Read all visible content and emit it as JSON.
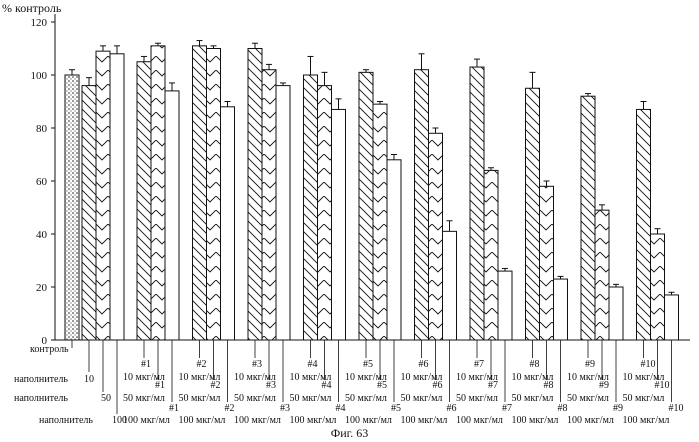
{
  "chart_data": {
    "type": "bar",
    "ylabel": "% контроль",
    "ylim": [
      0,
      120
    ],
    "yticks": [
      0,
      20,
      40,
      60,
      80,
      100,
      120
    ],
    "caption": "Фиг. 63",
    "series": [
      {
        "name": "контроль",
        "pattern": "dotted"
      },
      {
        "name": "10",
        "pattern": "backslash"
      },
      {
        "name": "50",
        "pattern": "chevron"
      },
      {
        "name": "100",
        "pattern": "plain"
      }
    ],
    "groups": [
      {
        "label": "контроль",
        "values": [
          100,
          null,
          null,
          null
        ],
        "errors": [
          2,
          null,
          null,
          null
        ]
      },
      {
        "label": "наполнитель",
        "values": [
          null,
          96,
          109,
          108
        ],
        "errors": [
          null,
          3,
          2,
          3
        ]
      },
      {
        "label": "#1",
        "values": [
          null,
          105,
          111,
          94
        ],
        "errors": [
          null,
          2,
          1,
          3
        ]
      },
      {
        "label": "#2",
        "values": [
          null,
          111,
          110,
          88
        ],
        "errors": [
          null,
          2,
          1,
          2
        ]
      },
      {
        "label": "#3",
        "values": [
          null,
          110,
          102,
          96
        ],
        "errors": [
          null,
          2,
          2,
          1
        ]
      },
      {
        "label": "#4",
        "values": [
          null,
          100,
          96,
          87
        ],
        "errors": [
          null,
          7,
          5,
          4
        ]
      },
      {
        "label": "#5",
        "values": [
          null,
          101,
          89,
          68
        ],
        "errors": [
          null,
          1,
          1,
          2
        ]
      },
      {
        "label": "#6",
        "values": [
          null,
          102,
          78,
          41
        ],
        "errors": [
          null,
          6,
          2,
          4
        ]
      },
      {
        "label": "#7",
        "values": [
          null,
          103,
          64,
          26
        ],
        "errors": [
          null,
          3,
          1,
          1
        ]
      },
      {
        "label": "#8",
        "values": [
          null,
          95,
          58,
          23
        ],
        "errors": [
          null,
          6,
          2,
          1
        ]
      },
      {
        "label": "#9",
        "values": [
          null,
          92,
          49,
          20
        ],
        "errors": [
          null,
          1,
          2,
          1
        ]
      },
      {
        "label": "#10",
        "values": [
          null,
          87,
          40,
          17
        ],
        "errors": [
          null,
          3,
          2,
          1
        ]
      }
    ],
    "x_annotations": {
      "control": "контроль",
      "vehicle": [
        "наполнитель",
        "10",
        "наполнитель",
        "50",
        "наполнитель",
        "100"
      ],
      "compound_suffixes": {
        "10": "10 мкг/мл",
        "50": "50 мкг/мл",
        "100": "100 мкг/мл"
      },
      "compound_row_labels": [
        "#1",
        "#2",
        "#3",
        "#4",
        "#5",
        "#6",
        "#7",
        "#8",
        "#9",
        "#10"
      ]
    }
  }
}
